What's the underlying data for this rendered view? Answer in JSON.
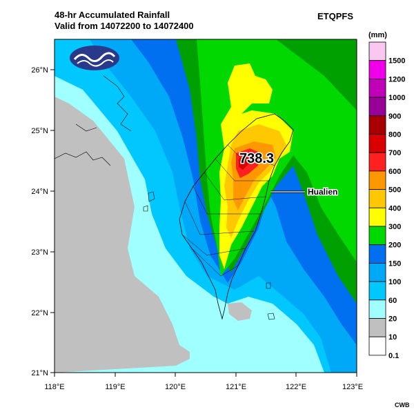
{
  "title_line1": "48-hr Accumulated Rainfall",
  "title_line2": "Valid from 14072200 to 14072400",
  "model": "ETQPFS",
  "unit": "(mm)",
  "credit": "CWB",
  "map": {
    "lon_ticks": [
      "118°E",
      "119°E",
      "120°E",
      "121°E",
      "122°E",
      "123°E"
    ],
    "lat_ticks": [
      "26°N",
      "25°N",
      "24°N",
      "23°N",
      "22°N",
      "21°N"
    ],
    "max_value": "738.3",
    "place_label": "Hualien"
  },
  "legend": {
    "labels": [
      "1500",
      "1200",
      "1000",
      "900",
      "800",
      "700",
      "600",
      "500",
      "400",
      "300",
      "200",
      "150",
      "100",
      "60",
      "20",
      "10",
      "0.1"
    ],
    "colors": [
      "#f8c8f0",
      "#f000e8",
      "#c000b8",
      "#980098",
      "#a80000",
      "#d80000",
      "#ff2020",
      "#ff9800",
      "#ffc800",
      "#ffff00",
      "#00d800",
      "#0070f0",
      "#00a8f8",
      "#00c8ff",
      "#a0ffff",
      "#c0c0c0",
      "#ffffff"
    ]
  }
}
